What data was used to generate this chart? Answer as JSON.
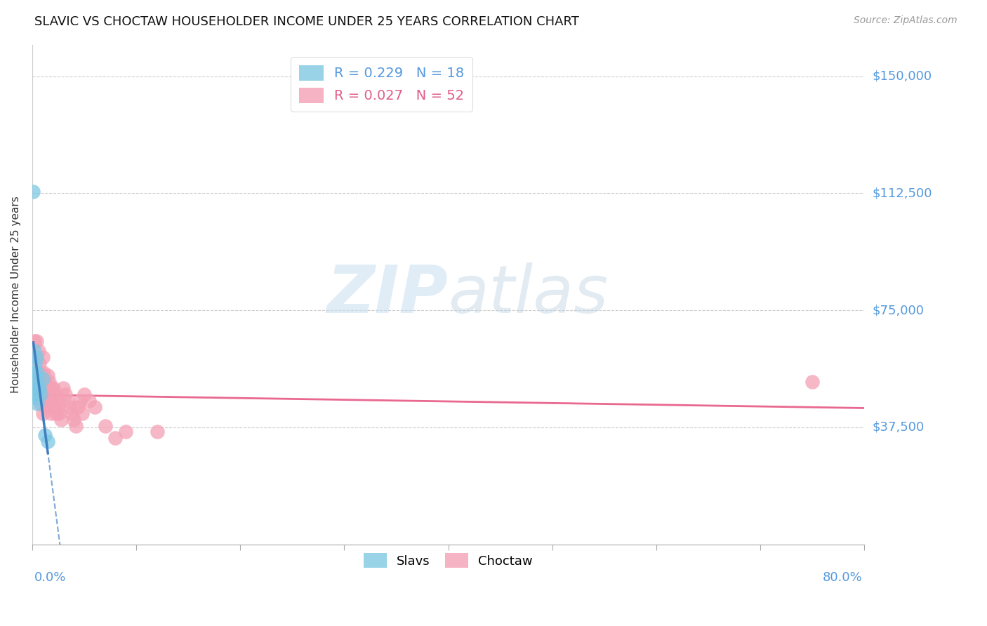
{
  "title": "SLAVIC VS CHOCTAW HOUSEHOLDER INCOME UNDER 25 YEARS CORRELATION CHART",
  "source": "Source: ZipAtlas.com",
  "ylabel": "Householder Income Under 25 years",
  "y_tick_labels": [
    "$37,500",
    "$75,000",
    "$112,500",
    "$150,000"
  ],
  "y_tick_values": [
    37500,
    75000,
    112500,
    150000
  ],
  "xlim": [
    0.0,
    0.8
  ],
  "ylim": [
    0,
    160000
  ],
  "slavic_R": 0.229,
  "slavic_N": 18,
  "choctaw_R": 0.027,
  "choctaw_N": 52,
  "slavic_color": "#7ec8e3",
  "choctaw_color": "#f4a0b5",
  "slavic_line_color": "#3a7abf",
  "choctaw_line_color": "#e8608a",
  "slavic_x": [
    0.001,
    0.002,
    0.002,
    0.002,
    0.003,
    0.003,
    0.003,
    0.004,
    0.004,
    0.004,
    0.005,
    0.005,
    0.006,
    0.007,
    0.008,
    0.01,
    0.012,
    0.015
  ],
  "slavic_y": [
    113000,
    62000,
    55000,
    50000,
    58000,
    53000,
    48000,
    60000,
    52000,
    47000,
    55000,
    45000,
    50000,
    50000,
    48000,
    53000,
    35000,
    33000
  ],
  "choctaw_x": [
    0.001,
    0.002,
    0.003,
    0.004,
    0.005,
    0.005,
    0.006,
    0.007,
    0.007,
    0.008,
    0.008,
    0.009,
    0.01,
    0.01,
    0.011,
    0.012,
    0.012,
    0.013,
    0.014,
    0.015,
    0.015,
    0.016,
    0.017,
    0.018,
    0.018,
    0.019,
    0.02,
    0.021,
    0.022,
    0.023,
    0.024,
    0.025,
    0.026,
    0.028,
    0.03,
    0.032,
    0.034,
    0.036,
    0.038,
    0.04,
    0.042,
    0.044,
    0.046,
    0.048,
    0.05,
    0.055,
    0.06,
    0.07,
    0.08,
    0.09,
    0.12,
    0.75
  ],
  "choctaw_y": [
    50000,
    65000,
    60000,
    65000,
    55000,
    48000,
    62000,
    58000,
    52000,
    55000,
    45000,
    48000,
    60000,
    42000,
    55000,
    52000,
    46000,
    50000,
    48000,
    54000,
    44000,
    52000,
    46000,
    50000,
    42000,
    46000,
    50000,
    44000,
    48000,
    42000,
    46000,
    44000,
    42000,
    40000,
    50000,
    48000,
    46000,
    44000,
    42000,
    40000,
    38000,
    44000,
    46000,
    42000,
    48000,
    46000,
    44000,
    38000,
    34000,
    36000,
    36000,
    52000
  ],
  "watermark_zip": "ZIP",
  "watermark_atlas": "atlas"
}
